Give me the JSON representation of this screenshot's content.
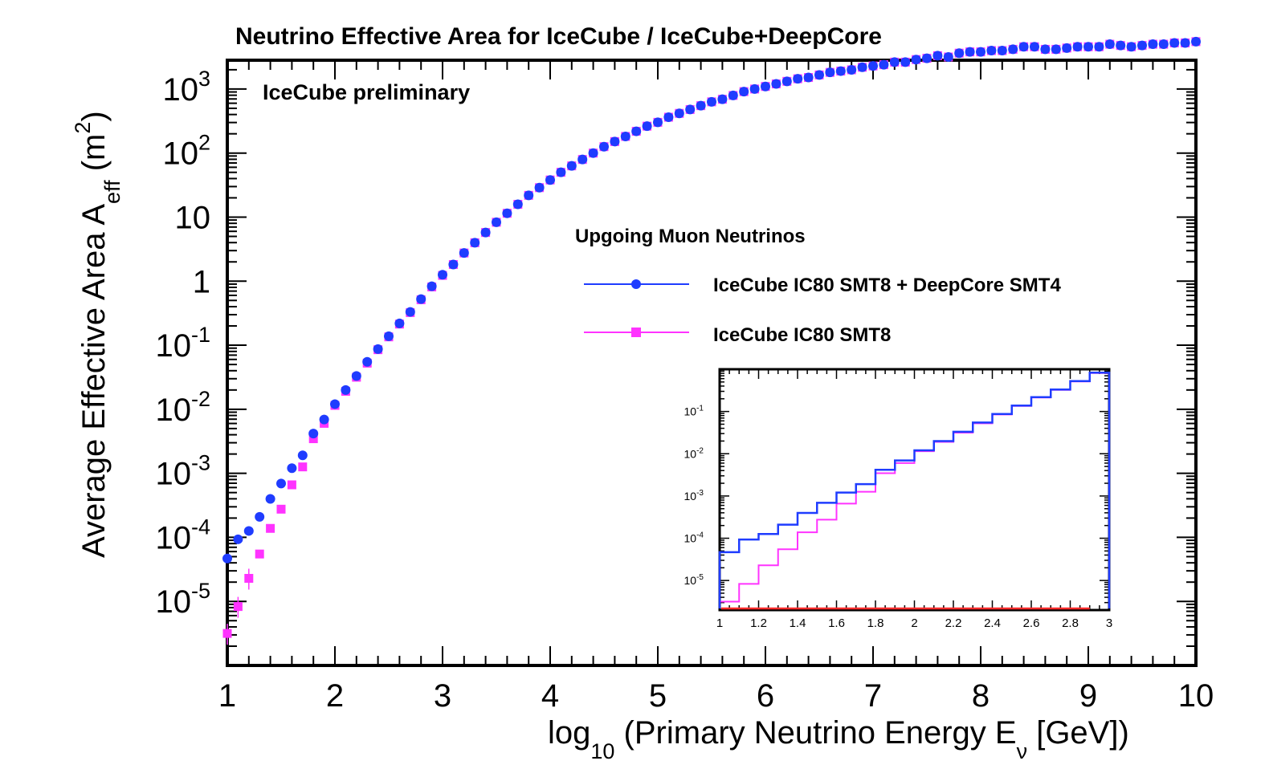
{
  "chart_data": {
    "type": "scatter",
    "title": "Neutrino Effective Area for IceCube / IceCube+DeepCore",
    "annotation": "IceCube preliminary",
    "xlabel": {
      "main": "log",
      "sub": "10",
      "rest": " (Primary Neutrino Energy E",
      "sub2": "ν",
      "end": " [GeV])"
    },
    "ylabel": {
      "main": "Average Effective Area A",
      "sub": "eff",
      "rest": " (m",
      "sup": "2",
      "end": ")"
    },
    "xlim": [
      1,
      10
    ],
    "ylog10lim": [
      -6.0,
      3.45
    ],
    "x_ticks": [
      "1",
      "2",
      "3",
      "4",
      "5",
      "6",
      "7",
      "8",
      "9",
      "10"
    ],
    "y_ticks": [
      {
        "exp": -5,
        "base": "10",
        "sup": "-5"
      },
      {
        "exp": -4,
        "base": "10",
        "sup": "-4"
      },
      {
        "exp": -3,
        "base": "10",
        "sup": "-3"
      },
      {
        "exp": -2,
        "base": "10",
        "sup": "-2"
      },
      {
        "exp": -1,
        "base": "10",
        "sup": "-1"
      },
      {
        "exp": 0,
        "base": "1",
        "sup": ""
      },
      {
        "exp": 1,
        "base": "10",
        "sup": ""
      },
      {
        "exp": 2,
        "base": "10",
        "sup": "2"
      },
      {
        "exp": 3,
        "base": "10",
        "sup": "3"
      }
    ],
    "legend": {
      "title": "Upgoing Muon Neutrinos",
      "entries": [
        {
          "label": "IceCube IC80 SMT8 + DeepCore SMT4",
          "color": "#1f3cff",
          "marker": "circle"
        },
        {
          "label": "IceCube IC80 SMT8",
          "color": "#ff33ff",
          "marker": "square"
        }
      ]
    },
    "x": [
      1.0,
      1.1,
      1.2,
      1.3,
      1.4,
      1.5,
      1.6,
      1.7,
      1.8,
      1.9,
      2.0,
      2.1,
      2.2,
      2.3,
      2.4,
      2.5,
      2.6,
      2.7,
      2.8,
      2.9,
      3.0,
      3.1,
      3.2,
      3.3,
      3.4,
      3.5,
      3.6,
      3.7,
      3.8,
      3.9,
      4.0,
      4.1,
      4.2,
      4.3,
      4.4,
      4.5,
      4.6,
      4.7,
      4.8,
      4.9,
      5.0,
      5.1,
      5.2,
      5.3,
      5.4,
      5.5,
      5.6,
      5.7,
      5.8,
      5.9,
      6.0,
      6.1,
      6.2,
      6.3,
      6.4,
      6.5,
      6.6,
      6.7,
      6.8,
      6.9,
      7.0,
      7.1,
      7.2,
      7.3,
      7.4,
      7.5,
      7.6,
      7.7,
      7.8,
      7.9,
      8.0,
      8.1,
      8.2,
      8.3,
      8.4,
      8.5,
      8.6,
      8.7,
      8.8,
      8.9,
      9.0,
      9.1,
      9.2,
      9.3,
      9.4,
      9.5,
      9.6,
      9.7,
      9.8,
      9.9,
      10.0
    ],
    "series": [
      {
        "name": "IceCube IC80 SMT8 + DeepCore SMT4",
        "color": "#1f3cff",
        "log10_values": [
          -4.33,
          -4.03,
          -3.9,
          -3.68,
          -3.4,
          -3.16,
          -2.92,
          -2.72,
          -2.38,
          -2.16,
          -1.92,
          -1.7,
          -1.48,
          -1.26,
          -1.06,
          -0.86,
          -0.66,
          -0.48,
          -0.28,
          -0.08,
          0.1,
          0.26,
          0.44,
          0.6,
          0.76,
          0.92,
          1.06,
          1.2,
          1.34,
          1.46,
          1.58,
          1.7,
          1.8,
          1.9,
          2.0,
          2.1,
          2.18,
          2.26,
          2.34,
          2.42,
          2.48,
          2.56,
          2.62,
          2.68,
          2.74,
          2.8,
          2.84,
          2.9,
          2.96,
          3.0,
          3.04,
          3.08,
          3.12,
          3.16,
          3.18,
          3.22,
          3.26,
          3.28,
          3.3,
          3.34,
          3.36,
          3.38,
          3.42,
          3.42,
          3.46,
          3.48,
          3.52,
          3.5,
          3.56,
          3.58,
          3.58,
          3.6,
          3.6,
          3.62,
          3.66,
          3.66,
          3.62,
          3.62,
          3.64,
          3.66,
          3.66,
          3.66,
          3.7,
          3.68,
          3.66,
          3.68,
          3.7,
          3.7,
          3.72,
          3.72,
          3.74
        ]
      },
      {
        "name": "IceCube IC80 SMT8",
        "color": "#ff33ff",
        "log10_values": [
          -5.5,
          -5.08,
          -4.64,
          -4.26,
          -3.86,
          -3.56,
          -3.18,
          -2.9,
          -2.46,
          -2.22,
          -1.94,
          -1.72,
          -1.5,
          -1.28,
          -1.07,
          -0.87,
          -0.67,
          -0.49,
          -0.29,
          -0.09,
          0.09,
          0.26,
          0.44,
          0.6,
          0.76,
          0.92,
          1.06,
          1.2,
          1.34,
          1.46,
          1.58,
          1.7,
          1.8,
          1.9,
          2.0,
          2.1,
          2.18,
          2.26,
          2.34,
          2.42,
          2.48,
          2.56,
          2.62,
          2.68,
          2.74,
          2.8,
          2.84,
          2.9,
          2.96,
          3.0,
          3.04,
          3.08,
          3.12,
          3.16,
          3.18,
          3.22,
          3.26,
          3.28,
          3.3,
          3.34,
          3.36,
          3.38,
          3.42,
          3.42,
          3.46,
          3.48,
          3.52,
          3.5,
          3.56,
          3.58,
          3.58,
          3.6,
          3.6,
          3.62,
          3.66,
          3.66,
          3.62,
          3.62,
          3.64,
          3.66,
          3.66,
          3.66,
          3.7,
          3.68,
          3.66,
          3.68,
          3.7,
          3.7,
          3.72,
          3.72,
          3.74
        ]
      }
    ],
    "inset": {
      "type": "step",
      "xlim": [
        1,
        3
      ],
      "log10_ylim": [
        -5.7,
        0.0
      ],
      "x_ticks": [
        "1",
        "1.2",
        "1.4",
        "1.6",
        "1.8",
        "2",
        "2.2",
        "2.4",
        "2.6",
        "2.8",
        "3"
      ],
      "y_ticks": [
        {
          "exp": -5,
          "base": "10",
          "sup": "-5"
        },
        {
          "exp": -4,
          "base": "10",
          "sup": "-4"
        },
        {
          "exp": -3,
          "base": "10",
          "sup": "-3"
        },
        {
          "exp": -2,
          "base": "10",
          "sup": "-2"
        },
        {
          "exp": -1,
          "base": "10",
          "sup": "-1"
        }
      ],
      "bin_edges": [
        1.0,
        1.1,
        1.2,
        1.3,
        1.4,
        1.5,
        1.6,
        1.7,
        1.8,
        1.9,
        2.0,
        2.1,
        2.2,
        2.3,
        2.4,
        2.5,
        2.6,
        2.7,
        2.8,
        2.9
      ],
      "series": [
        {
          "name": "IceCube IC80 SMT8 + DeepCore SMT4",
          "color": "#1f3cff",
          "log10_values": [
            -4.33,
            -4.03,
            -3.9,
            -3.68,
            -3.4,
            -3.16,
            -2.92,
            -2.72,
            -2.38,
            -2.16,
            -1.92,
            -1.7,
            -1.48,
            -1.26,
            -1.06,
            -0.86,
            -0.66,
            -0.48,
            -0.28,
            -0.08
          ]
        },
        {
          "name": "IceCube IC80 SMT8",
          "color": "#ff33ff",
          "log10_values": [
            -5.5,
            -5.08,
            -4.64,
            -4.26,
            -3.86,
            -3.56,
            -3.18,
            -2.9,
            -2.46,
            -2.22,
            -1.94,
            -1.72,
            -1.5,
            -1.28,
            -1.07,
            -0.87,
            -0.67,
            -0.49,
            -0.29,
            -0.09
          ]
        }
      ],
      "baseline_color": "#ff2a2a"
    }
  }
}
